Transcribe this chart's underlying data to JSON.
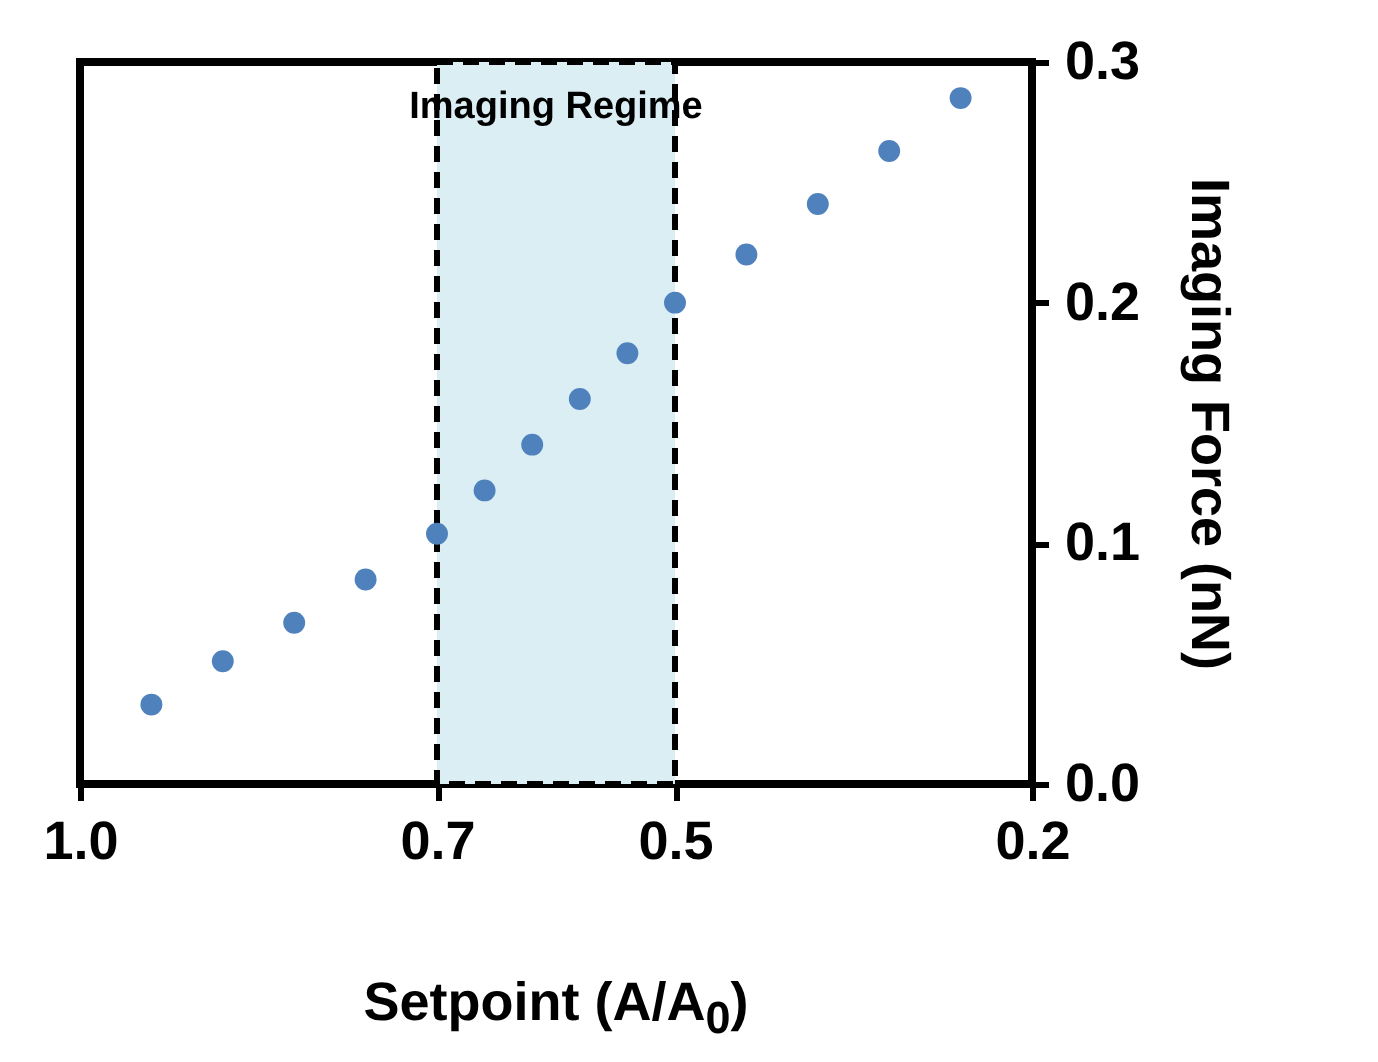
{
  "chart_data": {
    "type": "scatter",
    "xlabel": "Setpoint (A/A$_{0}$)",
    "ylabel": "Imaging Force (nN)",
    "x": [
      0.94,
      0.88,
      0.82,
      0.76,
      0.7,
      0.66,
      0.62,
      0.58,
      0.54,
      0.5,
      0.44,
      0.38,
      0.32,
      0.26
    ],
    "series": [
      {
        "color": "#4f81bd",
        "values": [
          0.033,
          0.051,
          0.067,
          0.085,
          0.104,
          0.122,
          0.141,
          0.16,
          0.179,
          0.2,
          0.22,
          0.241,
          0.263,
          0.285
        ]
      }
    ],
    "xlim": [
      1.0,
      0.2
    ],
    "xticks": [
      {
        "value": 1.0,
        "label": "1.0"
      },
      0.7,
      0.5,
      0.2
    ],
    "ylim": [
      0,
      0.3
    ],
    "yticks": [
      {
        "value": 0,
        "label": "0.0"
      },
      0.1,
      0.2,
      0.3
    ],
    "bands": [
      {
        "axis": "x",
        "from": 0.7,
        "to": 0.5,
        "label": "Imaging Regime",
        "color": "#daeef3"
      }
    ],
    "marker": "circle",
    "grid": false
  }
}
